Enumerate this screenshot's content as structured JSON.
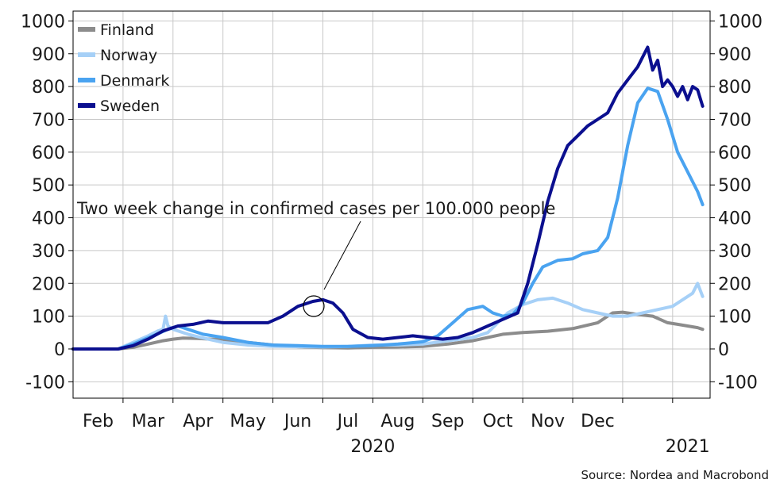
{
  "chart_data": {
    "type": "line",
    "title": "",
    "xlabel": "",
    "ylabel": "",
    "ylim": [
      -150,
      1030
    ],
    "y_ticks": [
      -100,
      0,
      100,
      200,
      300,
      400,
      500,
      600,
      700,
      800,
      900,
      1000
    ],
    "y_ticks_right": true,
    "grid": true,
    "legend_position": "top-left",
    "month_labels": [
      "Feb",
      "Mar",
      "Apr",
      "May",
      "Jun",
      "Jul",
      "Aug",
      "Sep",
      "Oct",
      "Nov",
      "Dec"
    ],
    "year_labels": [
      "2020",
      "2021"
    ],
    "annotation": "Two week change in confirmed cases per 100.000 people",
    "source": "Source: Nordea and Macrobond",
    "x_unit": "month (1 = Feb 2020 start)",
    "series": [
      {
        "name": "Finland",
        "color": "#8c8c8c",
        "points": [
          [
            0,
            0
          ],
          [
            0.9,
            0
          ],
          [
            1.2,
            5
          ],
          [
            1.5,
            15
          ],
          [
            1.8,
            25
          ],
          [
            2.0,
            30
          ],
          [
            2.2,
            33
          ],
          [
            2.5,
            32
          ],
          [
            3.0,
            28
          ],
          [
            3.5,
            20
          ],
          [
            4.0,
            12
          ],
          [
            4.5,
            7
          ],
          [
            5.0,
            4
          ],
          [
            5.5,
            3
          ],
          [
            6.0,
            5
          ],
          [
            6.5,
            6
          ],
          [
            7.0,
            8
          ],
          [
            7.5,
            15
          ],
          [
            8.0,
            25
          ],
          [
            8.3,
            35
          ],
          [
            8.6,
            45
          ],
          [
            9.0,
            50
          ],
          [
            9.5,
            54
          ],
          [
            10.0,
            62
          ],
          [
            10.5,
            80
          ],
          [
            10.8,
            110
          ],
          [
            11.0,
            112
          ],
          [
            11.3,
            105
          ],
          [
            11.6,
            100
          ],
          [
            11.9,
            80
          ],
          [
            12.1,
            75
          ],
          [
            12.3,
            70
          ],
          [
            12.5,
            65
          ],
          [
            12.6,
            60
          ]
        ]
      },
      {
        "name": "Norway",
        "color": "#a6d0f7",
        "points": [
          [
            0,
            0
          ],
          [
            0.9,
            0
          ],
          [
            1.2,
            20
          ],
          [
            1.5,
            40
          ],
          [
            1.7,
            55
          ],
          [
            1.8,
            60
          ],
          [
            1.85,
            100
          ],
          [
            1.9,
            70
          ],
          [
            2.0,
            60
          ],
          [
            2.3,
            45
          ],
          [
            2.7,
            30
          ],
          [
            3.0,
            20
          ],
          [
            3.5,
            12
          ],
          [
            4.0,
            8
          ],
          [
            4.5,
            7
          ],
          [
            5.0,
            6
          ],
          [
            5.5,
            8
          ],
          [
            6.0,
            12
          ],
          [
            6.5,
            12
          ],
          [
            7.0,
            15
          ],
          [
            7.5,
            25
          ],
          [
            8.0,
            35
          ],
          [
            8.3,
            50
          ],
          [
            8.5,
            80
          ],
          [
            8.7,
            110
          ],
          [
            9.0,
            135
          ],
          [
            9.3,
            150
          ],
          [
            9.6,
            155
          ],
          [
            9.9,
            140
          ],
          [
            10.2,
            120
          ],
          [
            10.5,
            110
          ],
          [
            10.8,
            100
          ],
          [
            11.1,
            100
          ],
          [
            11.4,
            110
          ],
          [
            11.7,
            120
          ],
          [
            12.0,
            130
          ],
          [
            12.2,
            150
          ],
          [
            12.4,
            170
          ],
          [
            12.5,
            200
          ],
          [
            12.6,
            160
          ]
        ]
      },
      {
        "name": "Denmark",
        "color": "#4aa3f0",
        "points": [
          [
            0,
            0
          ],
          [
            0.9,
            0
          ],
          [
            1.2,
            15
          ],
          [
            1.6,
            40
          ],
          [
            1.9,
            60
          ],
          [
            2.1,
            70
          ],
          [
            2.3,
            60
          ],
          [
            2.6,
            45
          ],
          [
            3.0,
            35
          ],
          [
            3.5,
            20
          ],
          [
            4.0,
            12
          ],
          [
            4.5,
            10
          ],
          [
            5.0,
            8
          ],
          [
            5.5,
            8
          ],
          [
            6.0,
            10
          ],
          [
            6.5,
            15
          ],
          [
            7.0,
            22
          ],
          [
            7.3,
            40
          ],
          [
            7.6,
            80
          ],
          [
            7.9,
            120
          ],
          [
            8.2,
            130
          ],
          [
            8.4,
            110
          ],
          [
            8.6,
            100
          ],
          [
            8.8,
            105
          ],
          [
            9.0,
            140
          ],
          [
            9.2,
            200
          ],
          [
            9.4,
            250
          ],
          [
            9.7,
            270
          ],
          [
            10.0,
            275
          ],
          [
            10.2,
            290
          ],
          [
            10.5,
            300
          ],
          [
            10.7,
            340
          ],
          [
            10.9,
            460
          ],
          [
            11.1,
            620
          ],
          [
            11.3,
            750
          ],
          [
            11.5,
            795
          ],
          [
            11.7,
            785
          ],
          [
            11.9,
            700
          ],
          [
            12.1,
            600
          ],
          [
            12.3,
            540
          ],
          [
            12.5,
            480
          ],
          [
            12.6,
            440
          ]
        ]
      },
      {
        "name": "Sweden",
        "color": "#0b0f8f",
        "points": [
          [
            0,
            0
          ],
          [
            0.9,
            0
          ],
          [
            1.2,
            10
          ],
          [
            1.5,
            30
          ],
          [
            1.8,
            55
          ],
          [
            2.1,
            70
          ],
          [
            2.4,
            75
          ],
          [
            2.7,
            85
          ],
          [
            3.0,
            80
          ],
          [
            3.3,
            80
          ],
          [
            3.6,
            80
          ],
          [
            3.9,
            80
          ],
          [
            4.2,
            100
          ],
          [
            4.5,
            130
          ],
          [
            4.8,
            145
          ],
          [
            5.0,
            150
          ],
          [
            5.2,
            140
          ],
          [
            5.4,
            110
          ],
          [
            5.6,
            60
          ],
          [
            5.9,
            35
          ],
          [
            6.2,
            30
          ],
          [
            6.5,
            35
          ],
          [
            6.8,
            40
          ],
          [
            7.1,
            35
          ],
          [
            7.4,
            30
          ],
          [
            7.7,
            35
          ],
          [
            8.0,
            50
          ],
          [
            8.3,
            70
          ],
          [
            8.6,
            90
          ],
          [
            8.9,
            110
          ],
          [
            9.1,
            200
          ],
          [
            9.3,
            320
          ],
          [
            9.5,
            450
          ],
          [
            9.7,
            550
          ],
          [
            9.9,
            620
          ],
          [
            10.1,
            650
          ],
          [
            10.3,
            680
          ],
          [
            10.5,
            700
          ],
          [
            10.7,
            720
          ],
          [
            10.9,
            780
          ],
          [
            11.1,
            820
          ],
          [
            11.3,
            860
          ],
          [
            11.5,
            920
          ],
          [
            11.6,
            850
          ],
          [
            11.7,
            880
          ],
          [
            11.8,
            800
          ],
          [
            11.9,
            820
          ],
          [
            12.0,
            800
          ],
          [
            12.1,
            770
          ],
          [
            12.2,
            800
          ],
          [
            12.3,
            760
          ],
          [
            12.4,
            800
          ],
          [
            12.5,
            790
          ],
          [
            12.6,
            740
          ]
        ]
      }
    ]
  }
}
